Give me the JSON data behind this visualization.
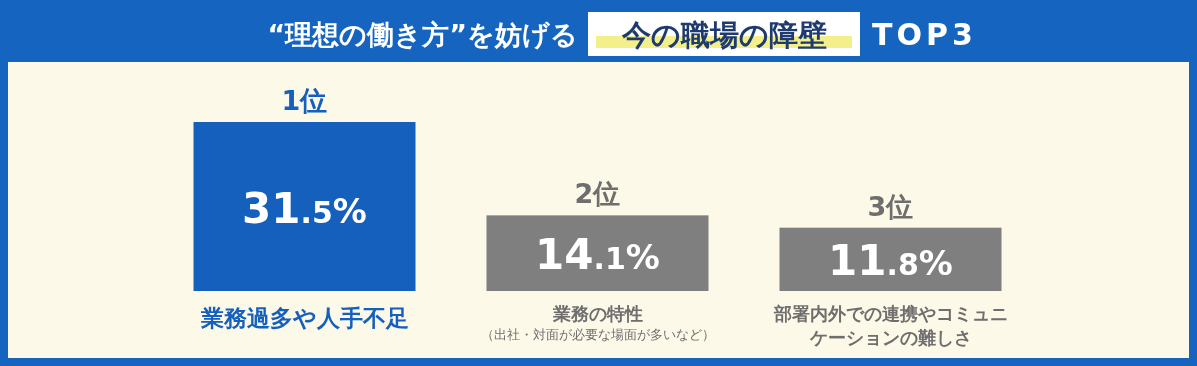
{
  "chart_data": {
    "type": "bar",
    "title": "“理想の働き方”を妨げる",
    "subtitle": "今の職場の障壁",
    "categories": [
      "業務過多や人手不足",
      "業務の特性",
      "部署内外での連携やコミュニケーションの難しさ"
    ],
    "values": [
      31.5,
      14.1,
      11.8
    ],
    "colors": [
      "#1560bd",
      "#7f7f7f",
      "#7f7f7f"
    ],
    "value_labels": [
      "31.5%",
      "14.1%",
      "11.8%"
    ],
    "annotations": [
      "TOP3",
      "（出社・対面が必要な場面が多いなど）",
      {
        "text": "1位",
        "x": "業務過多や人手不足",
        "y": 31.5
      },
      {
        "text": "2位",
        "x": "業務の特性",
        "y": 14.1
      },
      {
        "text": "3位",
        "x": "部署内外での連携やコミュニケーションの難しさ",
        "y": 11.8
      }
    ]
  }
}
